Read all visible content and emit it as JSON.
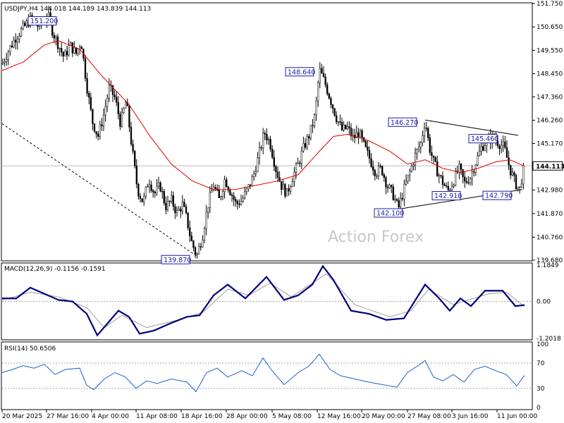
{
  "panels": {
    "price": {
      "header": "USDJPY,H4  144.018 144.189 143.839 144.113",
      "watermark": "Action Forex",
      "axis_labels": [
        "151.750",
        "150.650",
        "149.550",
        "148.450",
        "147.360",
        "146.260",
        "145.170",
        "144.113",
        "142.980",
        "141.870",
        "140.760",
        "139.680"
      ],
      "current_price": "144.113"
    },
    "macd": {
      "header": "MACD(12,26,9) -0.1156 -0.1591",
      "axis_labels": [
        "1.1849",
        "0.00",
        "-1.2018"
      ]
    },
    "rsi": {
      "header": "RSI(14) 50.6506",
      "axis_labels": [
        "100",
        "70",
        "30",
        "0"
      ]
    }
  },
  "chart_data": [
    {
      "type": "candlestick",
      "title": "USDJPY,H4",
      "symbol": "USDJPY",
      "timeframe": "H4",
      "ylim": [
        139.68,
        151.75
      ],
      "x_tick_labels": [
        "20 Mar 2025",
        "27 Mar 16:00",
        "4 Apr 00:00",
        "11 Apr 08:00",
        "18 Apr 16:00",
        "28 Apr 00:00",
        "5 May 08:00",
        "12 May 16:00",
        "20 May 00:00",
        "27 May 08:00",
        "3 Jun 16:00",
        "11 Jun 00:00"
      ],
      "ohlc_last": {
        "open": 144.018,
        "high": 144.189,
        "low": 143.839,
        "close": 144.113
      },
      "approx_close_path": [
        {
          "x": 0,
          "y": 148.9
        },
        {
          "x": 10,
          "y": 149.6
        },
        {
          "x": 20,
          "y": 150.2
        },
        {
          "x": 30,
          "y": 150.6
        },
        {
          "x": 40,
          "y": 151.0
        },
        {
          "x": 50,
          "y": 150.7
        },
        {
          "x": 58,
          "y": 150.9
        },
        {
          "x": 65,
          "y": 151.2
        },
        {
          "x": 72,
          "y": 150.4
        },
        {
          "x": 80,
          "y": 149.8
        },
        {
          "x": 88,
          "y": 149.2
        },
        {
          "x": 96,
          "y": 149.8
        },
        {
          "x": 105,
          "y": 149.4
        },
        {
          "x": 112,
          "y": 150.0
        },
        {
          "x": 120,
          "y": 147.9
        },
        {
          "x": 128,
          "y": 146.2
        },
        {
          "x": 136,
          "y": 145.5
        },
        {
          "x": 144,
          "y": 146.5
        },
        {
          "x": 152,
          "y": 147.8
        },
        {
          "x": 160,
          "y": 147.3
        },
        {
          "x": 168,
          "y": 146.1
        },
        {
          "x": 176,
          "y": 147.2
        },
        {
          "x": 184,
          "y": 145.0
        },
        {
          "x": 192,
          "y": 143.0
        },
        {
          "x": 200,
          "y": 142.4
        },
        {
          "x": 208,
          "y": 143.5
        },
        {
          "x": 216,
          "y": 142.8
        },
        {
          "x": 224,
          "y": 143.2
        },
        {
          "x": 232,
          "y": 142.2
        },
        {
          "x": 240,
          "y": 142.5
        },
        {
          "x": 248,
          "y": 141.9
        },
        {
          "x": 256,
          "y": 142.3
        },
        {
          "x": 262,
          "y": 141.6
        },
        {
          "x": 268,
          "y": 140.6
        },
        {
          "x": 276,
          "y": 139.87
        },
        {
          "x": 284,
          "y": 140.8
        },
        {
          "x": 292,
          "y": 142.3
        },
        {
          "x": 300,
          "y": 143.2
        },
        {
          "x": 308,
          "y": 142.5
        },
        {
          "x": 316,
          "y": 143.5
        },
        {
          "x": 324,
          "y": 142.9
        },
        {
          "x": 332,
          "y": 142.3
        },
        {
          "x": 340,
          "y": 142.5
        },
        {
          "x": 348,
          "y": 143.0
        },
        {
          "x": 356,
          "y": 143.6
        },
        {
          "x": 364,
          "y": 144.6
        },
        {
          "x": 372,
          "y": 145.7
        },
        {
          "x": 380,
          "y": 145.2
        },
        {
          "x": 388,
          "y": 144.0
        },
        {
          "x": 396,
          "y": 143.2
        },
        {
          "x": 404,
          "y": 142.8
        },
        {
          "x": 412,
          "y": 143.6
        },
        {
          "x": 420,
          "y": 144.2
        },
        {
          "x": 428,
          "y": 145.0
        },
        {
          "x": 436,
          "y": 145.6
        },
        {
          "x": 444,
          "y": 146.5
        },
        {
          "x": 450,
          "y": 148.64
        },
        {
          "x": 458,
          "y": 148.0
        },
        {
          "x": 466,
          "y": 147.2
        },
        {
          "x": 474,
          "y": 146.4
        },
        {
          "x": 482,
          "y": 145.8
        },
        {
          "x": 490,
          "y": 145.9
        },
        {
          "x": 498,
          "y": 145.4
        },
        {
          "x": 506,
          "y": 145.7
        },
        {
          "x": 514,
          "y": 145.0
        },
        {
          "x": 522,
          "y": 144.4
        },
        {
          "x": 530,
          "y": 143.8
        },
        {
          "x": 538,
          "y": 144.0
        },
        {
          "x": 546,
          "y": 143.2
        },
        {
          "x": 554,
          "y": 142.8
        },
        {
          "x": 562,
          "y": 142.1
        },
        {
          "x": 570,
          "y": 143.0
        },
        {
          "x": 578,
          "y": 143.8
        },
        {
          "x": 586,
          "y": 144.6
        },
        {
          "x": 594,
          "y": 145.2
        },
        {
          "x": 600,
          "y": 146.27
        },
        {
          "x": 606,
          "y": 145.0
        },
        {
          "x": 612,
          "y": 144.3
        },
        {
          "x": 618,
          "y": 143.8
        },
        {
          "x": 624,
          "y": 143.4
        },
        {
          "x": 632,
          "y": 142.91
        },
        {
          "x": 640,
          "y": 143.4
        },
        {
          "x": 648,
          "y": 144.0
        },
        {
          "x": 656,
          "y": 143.3
        },
        {
          "x": 664,
          "y": 143.6
        },
        {
          "x": 672,
          "y": 144.3
        },
        {
          "x": 680,
          "y": 145.0
        },
        {
          "x": 688,
          "y": 145.3
        },
        {
          "x": 696,
          "y": 145.46
        },
        {
          "x": 704,
          "y": 145.2
        },
        {
          "x": 712,
          "y": 145.0
        },
        {
          "x": 720,
          "y": 144.0
        },
        {
          "x": 728,
          "y": 143.3
        },
        {
          "x": 734,
          "y": 143.0
        },
        {
          "x": 738,
          "y": 143.7
        },
        {
          "x": 741,
          "y": 144.113
        }
      ],
      "moving_average": [
        {
          "x": 0,
          "y": 148.6
        },
        {
          "x": 30,
          "y": 149.0
        },
        {
          "x": 60,
          "y": 149.8
        },
        {
          "x": 80,
          "y": 150.0
        },
        {
          "x": 110,
          "y": 149.6
        },
        {
          "x": 140,
          "y": 148.4
        },
        {
          "x": 180,
          "y": 147.0
        },
        {
          "x": 210,
          "y": 145.5
        },
        {
          "x": 240,
          "y": 144.2
        },
        {
          "x": 270,
          "y": 143.4
        },
        {
          "x": 300,
          "y": 143.0
        },
        {
          "x": 330,
          "y": 143.0
        },
        {
          "x": 360,
          "y": 143.2
        },
        {
          "x": 390,
          "y": 143.4
        },
        {
          "x": 420,
          "y": 143.7
        },
        {
          "x": 450,
          "y": 144.8
        },
        {
          "x": 470,
          "y": 145.5
        },
        {
          "x": 490,
          "y": 145.6
        },
        {
          "x": 520,
          "y": 145.3
        },
        {
          "x": 550,
          "y": 144.8
        },
        {
          "x": 575,
          "y": 144.2
        },
        {
          "x": 600,
          "y": 144.4
        },
        {
          "x": 625,
          "y": 144.0
        },
        {
          "x": 650,
          "y": 143.8
        },
        {
          "x": 675,
          "y": 144.0
        },
        {
          "x": 700,
          "y": 144.3
        },
        {
          "x": 720,
          "y": 144.4
        },
        {
          "x": 741,
          "y": 144.1
        }
      ],
      "annotations": [
        {
          "label": "151.200",
          "x": 65,
          "y": 151.2
        },
        {
          "label": "139.870",
          "x": 276,
          "y": 139.87
        },
        {
          "label": "148.640",
          "x": 450,
          "y": 148.64
        },
        {
          "label": "146.270",
          "x": 600,
          "y": 146.27
        },
        {
          "label": "142.100",
          "x": 566,
          "y": 142.1
        },
        {
          "label": "142.910",
          "x": 632,
          "y": 142.91
        },
        {
          "label": "145.460",
          "x": 696,
          "y": 145.46
        },
        {
          "label": "142.790",
          "x": 716,
          "y": 142.79
        }
      ]
    },
    {
      "type": "line",
      "title": "MACD(12,26,9)",
      "ylim": [
        -1.2018,
        1.1849
      ],
      "series": [
        {
          "name": "MACD",
          "values": [
            {
              "x": 0,
              "y": 0.1
            },
            {
              "x": 20,
              "y": 0.1
            },
            {
              "x": 40,
              "y": 0.45
            },
            {
              "x": 60,
              "y": 0.25
            },
            {
              "x": 80,
              "y": 0.05
            },
            {
              "x": 100,
              "y": 0.0
            },
            {
              "x": 120,
              "y": -0.4
            },
            {
              "x": 135,
              "y": -1.1
            },
            {
              "x": 150,
              "y": -0.7
            },
            {
              "x": 165,
              "y": -0.3
            },
            {
              "x": 180,
              "y": -0.5
            },
            {
              "x": 195,
              "y": -1.05
            },
            {
              "x": 215,
              "y": -0.95
            },
            {
              "x": 240,
              "y": -0.7
            },
            {
              "x": 262,
              "y": -0.5
            },
            {
              "x": 280,
              "y": -0.45
            },
            {
              "x": 300,
              "y": 0.2
            },
            {
              "x": 320,
              "y": 0.55
            },
            {
              "x": 345,
              "y": 0.1
            },
            {
              "x": 375,
              "y": 0.8
            },
            {
              "x": 400,
              "y": 0.05
            },
            {
              "x": 420,
              "y": 0.2
            },
            {
              "x": 440,
              "y": 0.55
            },
            {
              "x": 455,
              "y": 1.15
            },
            {
              "x": 470,
              "y": 0.7
            },
            {
              "x": 495,
              "y": -0.3
            },
            {
              "x": 520,
              "y": -0.4
            },
            {
              "x": 545,
              "y": -0.6
            },
            {
              "x": 570,
              "y": -0.55
            },
            {
              "x": 585,
              "y": 0.0
            },
            {
              "x": 600,
              "y": 0.55
            },
            {
              "x": 620,
              "y": 0.1
            },
            {
              "x": 635,
              "y": -0.3
            },
            {
              "x": 650,
              "y": 0.1
            },
            {
              "x": 665,
              "y": -0.15
            },
            {
              "x": 685,
              "y": 0.35
            },
            {
              "x": 710,
              "y": 0.35
            },
            {
              "x": 728,
              "y": -0.15
            },
            {
              "x": 741,
              "y": -0.1156
            }
          ]
        },
        {
          "name": "Signal",
          "values": [
            {
              "x": 0,
              "y": 0.05
            },
            {
              "x": 40,
              "y": 0.3
            },
            {
              "x": 80,
              "y": 0.15
            },
            {
              "x": 120,
              "y": -0.2
            },
            {
              "x": 145,
              "y": -0.85
            },
            {
              "x": 170,
              "y": -0.45
            },
            {
              "x": 205,
              "y": -0.85
            },
            {
              "x": 250,
              "y": -0.6
            },
            {
              "x": 285,
              "y": -0.35
            },
            {
              "x": 320,
              "y": 0.4
            },
            {
              "x": 350,
              "y": 0.2
            },
            {
              "x": 380,
              "y": 0.6
            },
            {
              "x": 410,
              "y": 0.15
            },
            {
              "x": 460,
              "y": 0.9
            },
            {
              "x": 500,
              "y": -0.1
            },
            {
              "x": 550,
              "y": -0.5
            },
            {
              "x": 580,
              "y": -0.3
            },
            {
              "x": 605,
              "y": 0.4
            },
            {
              "x": 640,
              "y": -0.1
            },
            {
              "x": 690,
              "y": 0.25
            },
            {
              "x": 715,
              "y": 0.3
            },
            {
              "x": 741,
              "y": -0.1591
            }
          ]
        }
      ]
    },
    {
      "type": "line",
      "title": "RSI(14)",
      "ylim": [
        0,
        100
      ],
      "levels": [
        30,
        70
      ],
      "series": [
        {
          "name": "RSI",
          "values": [
            {
              "x": 0,
              "y": 55
            },
            {
              "x": 15,
              "y": 60
            },
            {
              "x": 30,
              "y": 66
            },
            {
              "x": 45,
              "y": 62
            },
            {
              "x": 60,
              "y": 68
            },
            {
              "x": 75,
              "y": 52
            },
            {
              "x": 90,
              "y": 60
            },
            {
              "x": 110,
              "y": 62
            },
            {
              "x": 120,
              "y": 35
            },
            {
              "x": 130,
              "y": 28
            },
            {
              "x": 145,
              "y": 45
            },
            {
              "x": 160,
              "y": 55
            },
            {
              "x": 175,
              "y": 48
            },
            {
              "x": 190,
              "y": 30
            },
            {
              "x": 205,
              "y": 42
            },
            {
              "x": 220,
              "y": 38
            },
            {
              "x": 240,
              "y": 45
            },
            {
              "x": 262,
              "y": 40
            },
            {
              "x": 275,
              "y": 25
            },
            {
              "x": 290,
              "y": 55
            },
            {
              "x": 305,
              "y": 62
            },
            {
              "x": 320,
              "y": 48
            },
            {
              "x": 340,
              "y": 58
            },
            {
              "x": 355,
              "y": 50
            },
            {
              "x": 370,
              "y": 78
            },
            {
              "x": 385,
              "y": 55
            },
            {
              "x": 400,
              "y": 36
            },
            {
              "x": 420,
              "y": 55
            },
            {
              "x": 435,
              "y": 65
            },
            {
              "x": 450,
              "y": 84
            },
            {
              "x": 465,
              "y": 60
            },
            {
              "x": 480,
              "y": 50
            },
            {
              "x": 500,
              "y": 45
            },
            {
              "x": 520,
              "y": 40
            },
            {
              "x": 540,
              "y": 36
            },
            {
              "x": 560,
              "y": 32
            },
            {
              "x": 575,
              "y": 55
            },
            {
              "x": 590,
              "y": 66
            },
            {
              "x": 600,
              "y": 74
            },
            {
              "x": 612,
              "y": 48
            },
            {
              "x": 625,
              "y": 42
            },
            {
              "x": 640,
              "y": 52
            },
            {
              "x": 655,
              "y": 40
            },
            {
              "x": 670,
              "y": 60
            },
            {
              "x": 685,
              "y": 65
            },
            {
              "x": 700,
              "y": 58
            },
            {
              "x": 715,
              "y": 52
            },
            {
              "x": 730,
              "y": 34
            },
            {
              "x": 741,
              "y": 50.65
            }
          ]
        }
      ]
    }
  ]
}
